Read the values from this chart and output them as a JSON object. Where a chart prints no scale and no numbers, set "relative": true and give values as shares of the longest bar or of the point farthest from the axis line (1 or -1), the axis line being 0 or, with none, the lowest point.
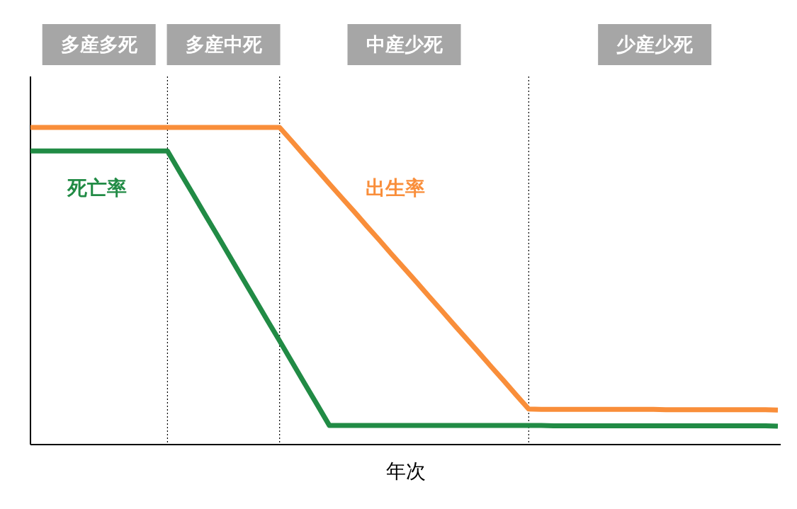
{
  "chart_data": {
    "type": "line",
    "relative": true,
    "xlabel": "年次",
    "line_style": "solid",
    "grid": "x",
    "categories": [
      null,
      null,
      null,
      null,
      null,
      null,
      null,
      null,
      null,
      null,
      null,
      null,
      null,
      null,
      null,
      null,
      null,
      null,
      null,
      null,
      null,
      null,
      null,
      null,
      null,
      null,
      null,
      null,
      null,
      null,
      null,
      null,
      null,
      null,
      null,
      null,
      null,
      null,
      null,
      null,
      null,
      null,
      null,
      null,
      null,
      null,
      null,
      null,
      null,
      null,
      null,
      null,
      null,
      null,
      null,
      null,
      null,
      null,
      null,
      null,
      null
    ],
    "series": [
      {
        "name": "出生率",
        "color": "#f98e3a",
        "values": [
          1,
          1,
          1,
          1,
          1,
          1,
          1,
          1,
          1,
          1,
          1,
          1,
          1,
          1,
          1,
          1,
          1,
          1,
          1,
          1,
          1,
          0.956,
          0.911,
          0.867,
          0.822,
          0.778,
          0.734,
          0.689,
          0.645,
          0.6,
          0.556,
          0.512,
          0.467,
          0.423,
          0.378,
          0.334,
          0.29,
          0.245,
          0.201,
          0.156,
          0.112,
          0.111,
          0.111,
          0.111,
          0.111,
          0.111,
          0.111,
          0.111,
          0.111,
          0.111,
          0.111,
          0.11,
          0.11,
          0.11,
          0.11,
          0.11,
          0.11,
          0.11,
          0.11,
          0.11,
          0.109
        ]
      },
      {
        "name": "死亡率",
        "color": "#218b45",
        "values": [
          0.926,
          0.926,
          0.926,
          0.926,
          0.926,
          0.926,
          0.926,
          0.926,
          0.926,
          0.926,
          0.926,
          0.926,
          0.859,
          0.793,
          0.726,
          0.66,
          0.593,
          0.526,
          0.46,
          0.393,
          0.327,
          0.26,
          0.193,
          0.127,
          0.06,
          0.06,
          0.06,
          0.06,
          0.06,
          0.06,
          0.06,
          0.06,
          0.06,
          0.06,
          0.06,
          0.06,
          0.06,
          0.06,
          0.06,
          0.06,
          0.06,
          0.06,
          0.059,
          0.059,
          0.059,
          0.059,
          0.059,
          0.059,
          0.059,
          0.059,
          0.059,
          0.059,
          0.059,
          0.059,
          0.059,
          0.059,
          0.059,
          0.059,
          0.059,
          0.059,
          0.058
        ]
      }
    ],
    "annotations": [
      "多産多死",
      "多産中死",
      "中産少死",
      "少産少死"
    ]
  }
}
